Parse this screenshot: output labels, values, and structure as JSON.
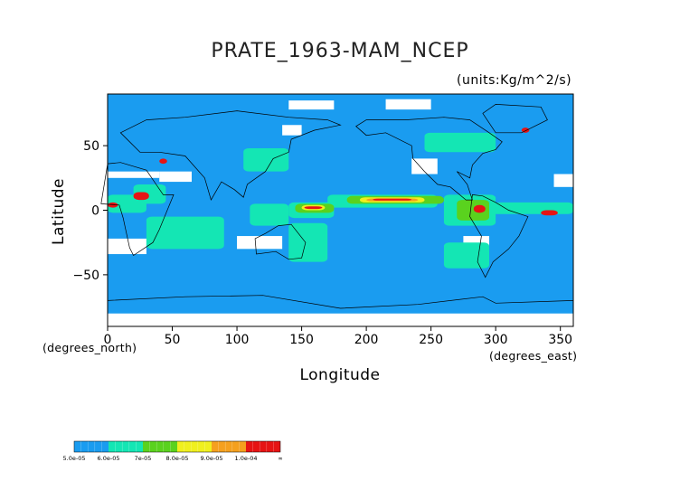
{
  "chart_data": {
    "type": "heatmap",
    "title": "PRATE_1963-MAM_NCEP",
    "units": "(units:Kg/m^2/s)",
    "xlabel": "Longitude",
    "ylabel": "Latitude",
    "x_unit_note": "(degrees_east)",
    "y_unit_note": "(degrees_north)",
    "xlim": [
      0,
      360
    ],
    "ylim": [
      -90,
      90
    ],
    "x_ticks": [
      0,
      50,
      100,
      150,
      200,
      250,
      300,
      350
    ],
    "x_tick_labels": [
      "0",
      "50",
      "100",
      "150",
      "200",
      "250",
      "300",
      "350"
    ],
    "y_ticks": [
      -50,
      0,
      50
    ],
    "y_tick_labels": [
      "−50",
      "0",
      "50"
    ],
    "colorbar": {
      "levels": [
        "5.0e-05",
        "6.0e-05",
        "7e-05",
        "8.0e-05",
        "9.0e-05",
        "1.0e-04",
        "∞"
      ],
      "colors": [
        "#1a9cf0",
        "#14e6b4",
        "#5ad21e",
        "#f0f01e",
        "#f5a01e",
        "#e61414"
      ]
    },
    "regions": [
      {
        "level": 1,
        "lon": [
          170,
          255
        ],
        "lat": [
          2,
          12
        ]
      },
      {
        "level": 1,
        "lon": [
          140,
          175
        ],
        "lat": [
          -6,
          6
        ]
      },
      {
        "level": 1,
        "lon": [
          260,
          300
        ],
        "lat": [
          -12,
          12
        ]
      },
      {
        "level": 1,
        "lon": [
          20,
          45
        ],
        "lat": [
          5,
          20
        ]
      },
      {
        "level": 1,
        "lon": [
          110,
          140
        ],
        "lat": [
          -12,
          5
        ]
      },
      {
        "level": 1,
        "lon": [
          140,
          170
        ],
        "lat": [
          -40,
          -10
        ]
      },
      {
        "level": 1,
        "lon": [
          260,
          295
        ],
        "lat": [
          -45,
          -25
        ]
      },
      {
        "level": 1,
        "lon": [
          0,
          30
        ],
        "lat": [
          -2,
          12
        ]
      },
      {
        "level": 1,
        "lon": [
          30,
          90
        ],
        "lat": [
          -30,
          -5
        ]
      },
      {
        "level": 1,
        "lon": [
          295,
          360
        ],
        "lat": [
          -3,
          6
        ]
      },
      {
        "level": 1,
        "lon": [
          245,
          300
        ],
        "lat": [
          45,
          60
        ]
      },
      {
        "level": 1,
        "lon": [
          105,
          140
        ],
        "lat": [
          30,
          48
        ]
      },
      {
        "level": 2,
        "lon": [
          185,
          260
        ],
        "lat": [
          5,
          11
        ]
      },
      {
        "level": 2,
        "lon": [
          145,
          175
        ],
        "lat": [
          -2,
          5
        ]
      },
      {
        "level": 2,
        "lon": [
          270,
          295
        ],
        "lat": [
          -8,
          8
        ]
      },
      {
        "level": 3,
        "lon": [
          195,
          245
        ],
        "lat": [
          6,
          10
        ]
      },
      {
        "level": 3,
        "lon": [
          150,
          168
        ],
        "lat": [
          0,
          4
        ]
      },
      {
        "level": 4,
        "lon": [
          200,
          240
        ],
        "lat": [
          7,
          9
        ]
      },
      {
        "level": 5,
        "lon": [
          205,
          235
        ],
        "lat": [
          7.5,
          9
        ]
      },
      {
        "level": 5,
        "lon": [
          152,
          166
        ],
        "lat": [
          1,
          3
        ]
      },
      {
        "level": 5,
        "lon": [
          20,
          32
        ],
        "lat": [
          8,
          14
        ]
      },
      {
        "level": 5,
        "lon": [
          0,
          8
        ],
        "lat": [
          2,
          6
        ]
      },
      {
        "level": 5,
        "lon": [
          283,
          292
        ],
        "lat": [
          -2,
          4
        ]
      },
      {
        "level": 5,
        "lon": [
          335,
          348
        ],
        "lat": [
          -4,
          0
        ]
      },
      {
        "level": 5,
        "lon": [
          40,
          46
        ],
        "lat": [
          36,
          40
        ]
      },
      {
        "level": 5,
        "lon": [
          320,
          326
        ],
        "lat": [
          60,
          64
        ]
      }
    ],
    "blanks": [
      {
        "lon": [
          0,
          30
        ],
        "lat": [
          -34,
          -22
        ]
      },
      {
        "lon": [
          100,
          135
        ],
        "lat": [
          -30,
          -20
        ]
      },
      {
        "lon": [
          275,
          295
        ],
        "lat": [
          -28,
          -20
        ]
      },
      {
        "lon": [
          0,
          40
        ],
        "lat": [
          25,
          30
        ]
      },
      {
        "lon": [
          40,
          65
        ],
        "lat": [
          22,
          30
        ]
      },
      {
        "lon": [
          345,
          360
        ],
        "lat": [
          18,
          28
        ]
      },
      {
        "lon": [
          235,
          255
        ],
        "lat": [
          28,
          40
        ]
      },
      {
        "lon": [
          0,
          360
        ],
        "lat": [
          -90,
          -80
        ]
      },
      {
        "lon": [
          140,
          175
        ],
        "lat": [
          78,
          85
        ]
      },
      {
        "lon": [
          215,
          250
        ],
        "lat": [
          78,
          86
        ]
      },
      {
        "lon": [
          135,
          150
        ],
        "lat": [
          58,
          66
        ]
      }
    ]
  }
}
